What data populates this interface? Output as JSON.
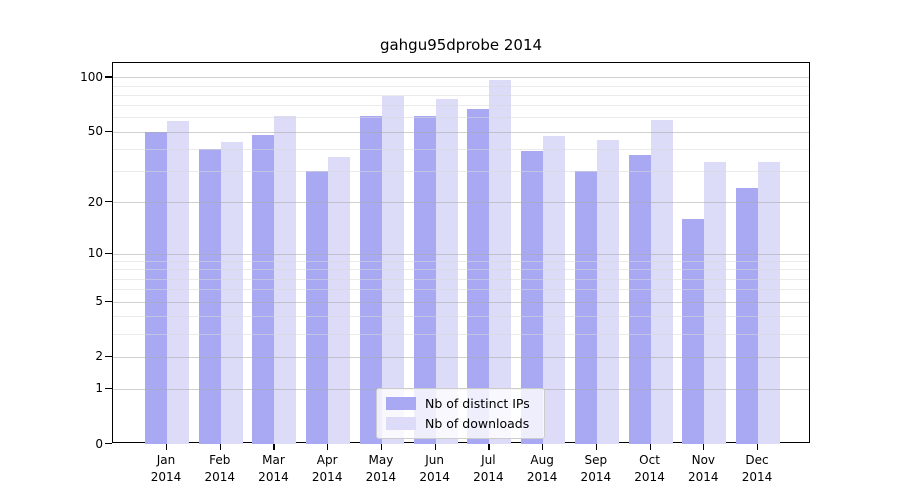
{
  "chart_data": {
    "type": "bar",
    "title": "gahgu95dprobe 2014",
    "year": "2014",
    "categories": [
      "Jan",
      "Feb",
      "Mar",
      "Apr",
      "May",
      "Jun",
      "Jul",
      "Aug",
      "Sep",
      "Oct",
      "Nov",
      "Dec"
    ],
    "series": [
      {
        "name": "Nb of distinct IPs",
        "color": "#a8a8f3",
        "values": [
          50,
          40,
          48,
          30,
          61,
          61,
          67,
          39,
          30,
          37,
          16,
          24
        ]
      },
      {
        "name": "Nb of downloads",
        "color": "#dcdcf9",
        "values": [
          57,
          44,
          61,
          36,
          79,
          76,
          97,
          47,
          45,
          58,
          34,
          34
        ]
      }
    ],
    "yscale": "log1p",
    "ylim_top": 120,
    "y_major_ticks": [
      0,
      1,
      2,
      5,
      10,
      20,
      50,
      100
    ],
    "y_minor_gridlines": [
      3,
      4,
      6,
      7,
      8,
      9,
      30,
      40,
      60,
      70,
      80,
      90
    ],
    "xlabel": "",
    "ylabel": "",
    "grid": true,
    "legend_position": "lower center"
  },
  "colors": {
    "background": "#ffffff",
    "axis": "#000000",
    "major_grid": "#aaaaaa",
    "minor_grid": "#d9d9d9",
    "bar_ips": "#a8a8f3",
    "bar_downloads": "#dcdcf9"
  }
}
